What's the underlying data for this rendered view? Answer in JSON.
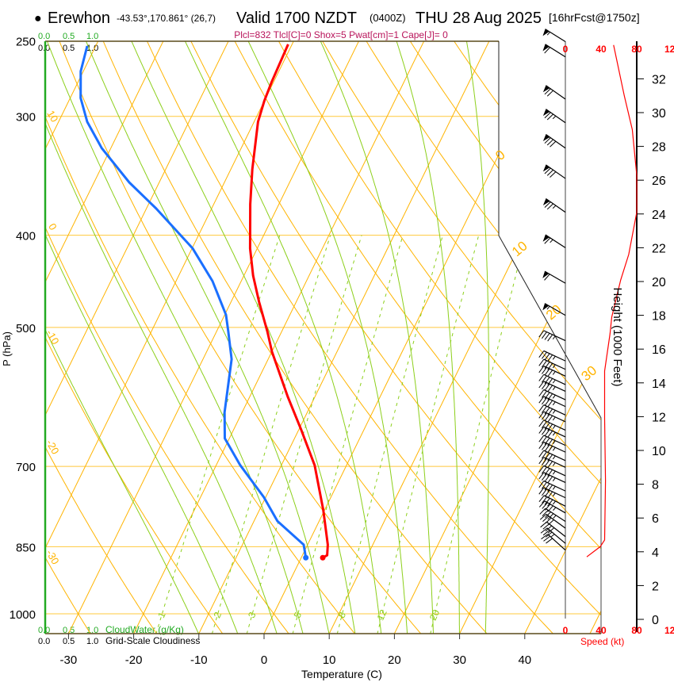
{
  "header": {
    "bullet": "●",
    "station": "Erewhon",
    "coords": "-43.53°,170.861° (26,7)",
    "valid": "Valid 1700 NZDT",
    "utc": "(0400Z)",
    "date": "THU 28 Aug 2025",
    "forecast": "[16hrFcst@1750z]",
    "indices": "Plcl=832 Tlcl[C]=0 Shox=5 Pwat[cm]=1 Cape[J]= 0"
  },
  "cloud_axis": {
    "ticks": [
      "0.0",
      "0.5",
      "1.0"
    ],
    "cloudwater_label": "CloudWater (g/Kg)",
    "cloudiness_label": "Grid-Scale Cloudiness"
  },
  "colors": {
    "temperature": "#ff0000",
    "dewpoint": "#1a6fff",
    "isotherm": "#ffb400",
    "moist_adiabat": "#8ccf1a",
    "mixing_ratio": "#8ccf1a",
    "indices": "#b8135a",
    "speed": "#ff0000",
    "cloud": "#22aa22"
  },
  "chart_data": {
    "type": "line",
    "title": "Erewhon Skew-T Valid 1700 NZDT THU 28 Aug 2025",
    "xlabel": "Temperature (C)",
    "ylabel": "P (hPa)",
    "x_ticks": [
      -30,
      -20,
      -10,
      0,
      10,
      20,
      30,
      40
    ],
    "p_ticks": [
      250,
      300,
      400,
      500,
      700,
      850,
      1000
    ],
    "p_range": [
      1049,
      250
    ],
    "isotherm_labels": [
      0,
      10,
      20,
      30
    ],
    "dry_adiabat_labels": [
      10,
      0,
      -10,
      -20,
      -30
    ],
    "mixing_ratio_lines": [
      1,
      2,
      3,
      5,
      8,
      12,
      20
    ],
    "moist_adiabat_start_temps": [
      -10,
      -4,
      2,
      6,
      10,
      14,
      18,
      22,
      26,
      30,
      34
    ],
    "series": [
      {
        "name": "Temperature",
        "points": [
          [
            252,
            -40.6
          ],
          [
            276,
            -40.3
          ],
          [
            289,
            -40.0
          ],
          [
            304,
            -39.4
          ],
          [
            324,
            -37.9
          ],
          [
            341,
            -36.7
          ],
          [
            371,
            -34.4
          ],
          [
            413,
            -31.1
          ],
          [
            441,
            -28.6
          ],
          [
            470,
            -25.7
          ],
          [
            505,
            -22.2
          ],
          [
            530,
            -20.0
          ],
          [
            591,
            -14.2
          ],
          [
            642,
            -9.5
          ],
          [
            698,
            -4.9
          ],
          [
            778,
            -0.2
          ],
          [
            846,
            3.1
          ],
          [
            868,
            3.8
          ],
          [
            873,
            3.3
          ]
        ]
      },
      {
        "name": "Dewpoint",
        "points": [
          [
            253,
            -71.3
          ],
          [
            269,
            -70.4
          ],
          [
            287,
            -68.4
          ],
          [
            304,
            -65.6
          ],
          [
            324,
            -61.4
          ],
          [
            352,
            -54.6
          ],
          [
            375,
            -48.5
          ],
          [
            413,
            -39.9
          ],
          [
            447,
            -34.4
          ],
          [
            485,
            -29.8
          ],
          [
            505,
            -28.2
          ],
          [
            540,
            -25.6
          ],
          [
            614,
            -22.7
          ],
          [
            654,
            -20.7
          ],
          [
            698,
            -16.3
          ],
          [
            754,
            -10.3
          ],
          [
            799,
            -6.4
          ],
          [
            846,
            -0.6
          ],
          [
            873,
            0.7
          ]
        ]
      }
    ],
    "height_axis": {
      "label": "Height (1000 Feet)",
      "ticks": [
        0,
        2,
        4,
        6,
        8,
        10,
        12,
        14,
        16,
        18,
        20,
        22,
        24,
        26,
        28,
        30,
        32
      ]
    },
    "speed_axis": {
      "label": "Speed (kt)",
      "ticks": [
        "0",
        "40",
        "80",
        "120"
      ],
      "profile": [
        [
          3.7,
          24
        ],
        [
          4.3,
          39
        ],
        [
          4.7,
          44
        ],
        [
          8.2,
          45
        ],
        [
          11.9,
          44
        ],
        [
          14.7,
          44
        ],
        [
          16.9,
          50
        ],
        [
          17.9,
          52
        ],
        [
          20.1,
          62
        ],
        [
          21.6,
          71
        ],
        [
          24.1,
          80
        ],
        [
          26.3,
          80
        ],
        [
          29.0,
          75
        ],
        [
          31.0,
          66
        ],
        [
          34.0,
          54
        ]
      ]
    },
    "wind_barbs": [
      {
        "h": 34.2,
        "spd": 55,
        "dir": 302
      },
      {
        "h": 33.3,
        "spd": 60,
        "dir": 302
      },
      {
        "h": 30.8,
        "spd": 70,
        "dir": 305
      },
      {
        "h": 29.4,
        "spd": 75,
        "dir": 305
      },
      {
        "h": 27.9,
        "spd": 80,
        "dir": 305
      },
      {
        "h": 26.1,
        "spd": 80,
        "dir": 305
      },
      {
        "h": 24.1,
        "spd": 75,
        "dir": 305
      },
      {
        "h": 22.0,
        "spd": 65,
        "dir": 303
      },
      {
        "h": 19.9,
        "spd": 60,
        "dir": 300
      },
      {
        "h": 18.0,
        "spd": 55,
        "dir": 300
      },
      {
        "h": 16.5,
        "spd": 45,
        "dir": 295
      },
      {
        "h": 15.3,
        "spd": 45,
        "dir": 295
      },
      {
        "h": 14.8,
        "spd": 45,
        "dir": 295
      },
      {
        "h": 14.4,
        "spd": 45,
        "dir": 295
      },
      {
        "h": 13.9,
        "spd": 45,
        "dir": 295
      },
      {
        "h": 13.5,
        "spd": 45,
        "dir": 295
      },
      {
        "h": 13.0,
        "spd": 45,
        "dir": 295
      },
      {
        "h": 12.6,
        "spd": 45,
        "dir": 295
      },
      {
        "h": 12.1,
        "spd": 45,
        "dir": 295
      },
      {
        "h": 11.7,
        "spd": 45,
        "dir": 295
      },
      {
        "h": 11.2,
        "spd": 45,
        "dir": 295
      },
      {
        "h": 10.8,
        "spd": 45,
        "dir": 295
      },
      {
        "h": 10.3,
        "spd": 45,
        "dir": 295
      },
      {
        "h": 9.9,
        "spd": 45,
        "dir": 295
      },
      {
        "h": 9.4,
        "spd": 45,
        "dir": 295
      },
      {
        "h": 9.0,
        "spd": 45,
        "dir": 295
      },
      {
        "h": 8.5,
        "spd": 45,
        "dir": 295
      },
      {
        "h": 8.1,
        "spd": 45,
        "dir": 295
      },
      {
        "h": 7.6,
        "spd": 45,
        "dir": 295
      },
      {
        "h": 7.2,
        "spd": 45,
        "dir": 295
      },
      {
        "h": 6.7,
        "spd": 45,
        "dir": 297
      },
      {
        "h": 6.3,
        "spd": 45,
        "dir": 300
      },
      {
        "h": 5.8,
        "spd": 45,
        "dir": 303
      },
      {
        "h": 5.4,
        "spd": 40,
        "dir": 306
      },
      {
        "h": 4.9,
        "spd": 40,
        "dir": 308
      },
      {
        "h": 4.5,
        "spd": 35,
        "dir": 310
      },
      {
        "h": 4.1,
        "spd": 30,
        "dir": 312
      }
    ]
  }
}
